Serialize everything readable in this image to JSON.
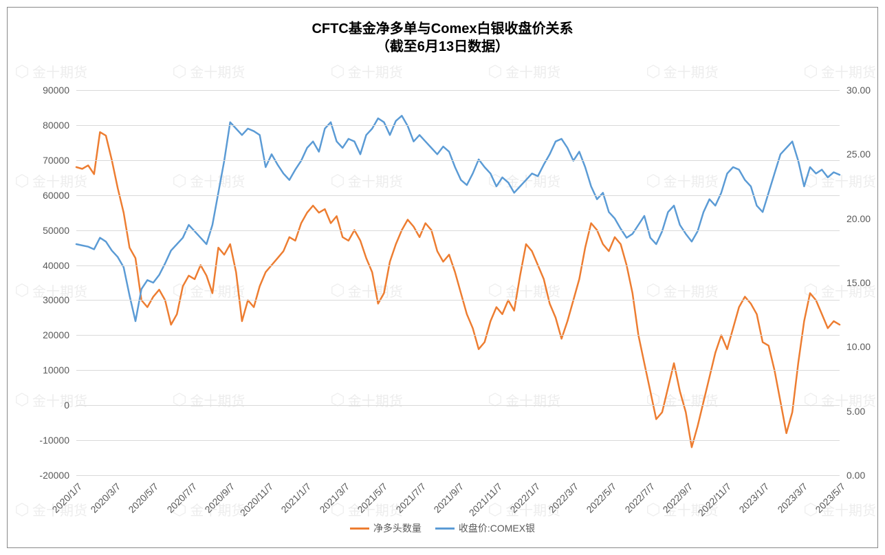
{
  "title_line1": "CFTC基金净多单与Comex白银收盘价关系",
  "title_line2": "（截至6月13日数据）",
  "title_fontsize": 20,
  "title_color": "#000000",
  "chart": {
    "type": "dual-axis-line",
    "background_color": "#ffffff",
    "grid_color": "#d9d9d9",
    "border_color": "#888888",
    "line_width": 2.5,
    "left_axis": {
      "min": -20000,
      "max": 90000,
      "step": 10000,
      "ticks": [
        -20000,
        -10000,
        0,
        10000,
        20000,
        30000,
        40000,
        50000,
        60000,
        70000,
        80000,
        90000
      ],
      "fontsize": 14,
      "color": "#595959"
    },
    "right_axis": {
      "min": 0,
      "max": 30,
      "step": 5,
      "ticks": [
        "0.00",
        "5.00",
        "10.00",
        "15.00",
        "20.00",
        "25.00",
        "30.00"
      ],
      "fontsize": 14,
      "color": "#595959"
    },
    "x_labels": [
      "2020/1/7",
      "2020/3/7",
      "2020/5/7",
      "2020/7/7",
      "2020/9/7",
      "2020/11/7",
      "2021/1/7",
      "2021/3/7",
      "2021/5/7",
      "2021/7/7",
      "2021/9/7",
      "2021/11/7",
      "2022/1/7",
      "2022/3/7",
      "2022/5/7",
      "2022/7/7",
      "2022/9/7",
      "2022/11/7",
      "2023/1/7",
      "2023/3/7",
      "2023/5/7"
    ],
    "x_label_fontsize": 14,
    "x_label_rotation": -45,
    "series": [
      {
        "name": "净多头数量",
        "axis": "left",
        "color": "#ed7d31",
        "values": [
          68000,
          67500,
          68500,
          66000,
          78000,
          77000,
          70000,
          62000,
          55000,
          45000,
          42000,
          30000,
          28000,
          31000,
          33000,
          30000,
          23000,
          26000,
          34000,
          37000,
          36000,
          40000,
          37000,
          32000,
          45000,
          43000,
          46000,
          38000,
          24000,
          30000,
          28000,
          34000,
          38000,
          40000,
          42000,
          44000,
          48000,
          47000,
          52000,
          55000,
          57000,
          55000,
          56000,
          52000,
          54000,
          48000,
          47000,
          50000,
          47000,
          42000,
          38000,
          29000,
          32000,
          41000,
          46000,
          50000,
          53000,
          51000,
          48000,
          52000,
          50000,
          44000,
          41000,
          43000,
          38000,
          32000,
          26000,
          22000,
          16000,
          18000,
          24000,
          28000,
          26000,
          30000,
          27000,
          37000,
          46000,
          44000,
          40000,
          36000,
          29000,
          25000,
          19000,
          24000,
          30000,
          36000,
          45000,
          52000,
          50000,
          46000,
          44000,
          48000,
          46000,
          40000,
          32000,
          20000,
          12000,
          4000,
          -4000,
          -2000,
          5000,
          12000,
          4000,
          -2000,
          -12000,
          -6000,
          1000,
          8000,
          15000,
          20000,
          16000,
          22000,
          28000,
          31000,
          29000,
          26000,
          18000,
          17000,
          10000,
          1000,
          -8000,
          -2000,
          12000,
          24000,
          32000,
          30000,
          26000,
          22000,
          24000,
          23000
        ]
      },
      {
        "name": "收盘价:COMEX银",
        "axis": "right",
        "color": "#5b9bd5",
        "values": [
          18.0,
          17.9,
          17.8,
          17.6,
          18.5,
          18.2,
          17.5,
          17.0,
          16.2,
          14.0,
          12.0,
          14.5,
          15.2,
          15.0,
          15.6,
          16.5,
          17.5,
          18.0,
          18.5,
          19.5,
          19.0,
          18.5,
          18.0,
          19.5,
          22.0,
          24.5,
          27.5,
          27.0,
          26.5,
          27.0,
          26.8,
          26.5,
          24.0,
          25.0,
          24.2,
          23.5,
          23.0,
          23.8,
          24.5,
          25.5,
          26.0,
          25.2,
          27.0,
          27.5,
          26.0,
          25.5,
          26.2,
          26.0,
          25.0,
          26.5,
          27.0,
          27.8,
          27.5,
          26.5,
          27.6,
          28.0,
          27.2,
          26.0,
          26.5,
          26.0,
          25.5,
          25.0,
          25.6,
          25.2,
          24.0,
          23.0,
          22.6,
          23.5,
          24.6,
          24.0,
          23.5,
          22.5,
          23.2,
          22.8,
          22.0,
          22.5,
          23.0,
          23.5,
          23.3,
          24.2,
          25.0,
          26.0,
          26.2,
          25.5,
          24.5,
          25.2,
          24.0,
          22.5,
          21.5,
          22.0,
          20.5,
          20.0,
          19.2,
          18.5,
          18.8,
          19.5,
          20.2,
          18.5,
          18.0,
          19.0,
          20.5,
          21.0,
          19.5,
          18.8,
          18.2,
          19.0,
          20.5,
          21.5,
          21.0,
          22.0,
          23.5,
          24.0,
          23.8,
          23.0,
          22.5,
          21.0,
          20.5,
          22.0,
          23.5,
          25.0,
          25.5,
          26.0,
          24.5,
          22.5,
          24.0,
          23.5,
          23.8,
          23.2,
          23.6,
          23.4
        ]
      }
    ],
    "legend": {
      "position": "bottom",
      "fontsize": 14,
      "text_color": "#595959"
    }
  },
  "watermark": {
    "text": "金十期货",
    "repeat_rows": 5,
    "repeat_cols": 6,
    "opacity": 0.07,
    "color": "#000000",
    "fontsize": 20
  }
}
